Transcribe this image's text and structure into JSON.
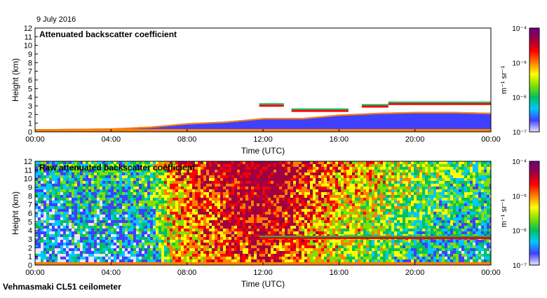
{
  "date_label": "9 July 2016",
  "footer": "Vehmasmaki CL51 ceilometer",
  "colors": [
    "#e6e6ff",
    "#4040ff",
    "#00c8ff",
    "#00c060",
    "#80e000",
    "#ffff00",
    "#ff8000",
    "#ff0000",
    "#a00040",
    "#6a0080"
  ],
  "chart_data": [
    {
      "type": "heatmap",
      "title": "Attenuated backscatter coefficient",
      "xlabel": "Time (UTC)",
      "ylabel": "Height (km)",
      "xticks": [
        "00:00",
        "04:00",
        "08:00",
        "12:00",
        "16:00",
        "20:00",
        "00:00"
      ],
      "xlim": [
        0,
        24
      ],
      "ylim": [
        0,
        12
      ],
      "yticks": [
        "0",
        "1",
        "2",
        "3",
        "4",
        "5",
        "6",
        "7",
        "8",
        "9",
        "10",
        "11",
        "12"
      ],
      "colorbar": {
        "unit": "m⁻¹ sr⁻¹",
        "ticks": [
          "10⁻⁴",
          "10⁻⁵",
          "10⁻⁶",
          "10⁻⁷"
        ]
      },
      "boundary_layer_km": [
        [
          0,
          0.3
        ],
        [
          4,
          0.4
        ],
        [
          6,
          0.6
        ],
        [
          8,
          1.0
        ],
        [
          10,
          1.2
        ],
        [
          12,
          1.6
        ],
        [
          14,
          1.6
        ],
        [
          16,
          2.0
        ],
        [
          18,
          2.2
        ],
        [
          20,
          2.3
        ],
        [
          22,
          2.3
        ],
        [
          24,
          2.2
        ]
      ],
      "cloud_layers": [
        {
          "start_h": 11.8,
          "end_h": 13.1,
          "base_km": 2.9
        },
        {
          "start_h": 13.5,
          "end_h": 16.5,
          "base_km": 2.3
        },
        {
          "start_h": 17.2,
          "end_h": 18.6,
          "base_km": 2.8
        },
        {
          "start_h": 18.6,
          "end_h": 24.0,
          "base_km": 3.1
        }
      ]
    },
    {
      "type": "heatmap",
      "title": "Raw attenuated backscatter coefficient",
      "xlabel": "Time (UTC)",
      "ylabel": "Height (km)",
      "xticks": [
        "00:00",
        "04:00",
        "08:00",
        "12:00",
        "16:00",
        "20:00",
        "00:00"
      ],
      "xlim": [
        0,
        24
      ],
      "ylim": [
        0,
        12
      ],
      "yticks": [
        "0",
        "1",
        "2",
        "3",
        "4",
        "5",
        "6",
        "7",
        "8",
        "9",
        "10",
        "11",
        "12"
      ],
      "colorbar": {
        "unit": "m⁻¹ sr⁻¹",
        "ticks": [
          "10⁻⁴",
          "10⁻⁵",
          "10⁻⁶",
          "10⁻⁷"
        ]
      },
      "noise_level_by_hour": [
        [
          0,
          0.15
        ],
        [
          2,
          0.2
        ],
        [
          4,
          0.2
        ],
        [
          6,
          0.25
        ],
        [
          7,
          0.55
        ],
        [
          9,
          0.7
        ],
        [
          12,
          0.85
        ],
        [
          14,
          0.7
        ],
        [
          16,
          0.55
        ],
        [
          18,
          0.45
        ],
        [
          21,
          0.3
        ],
        [
          24,
          0.25
        ]
      ],
      "cloud_layers": [
        {
          "start_h": 11.8,
          "end_h": 24.0,
          "base_km": 3.0
        }
      ]
    }
  ]
}
